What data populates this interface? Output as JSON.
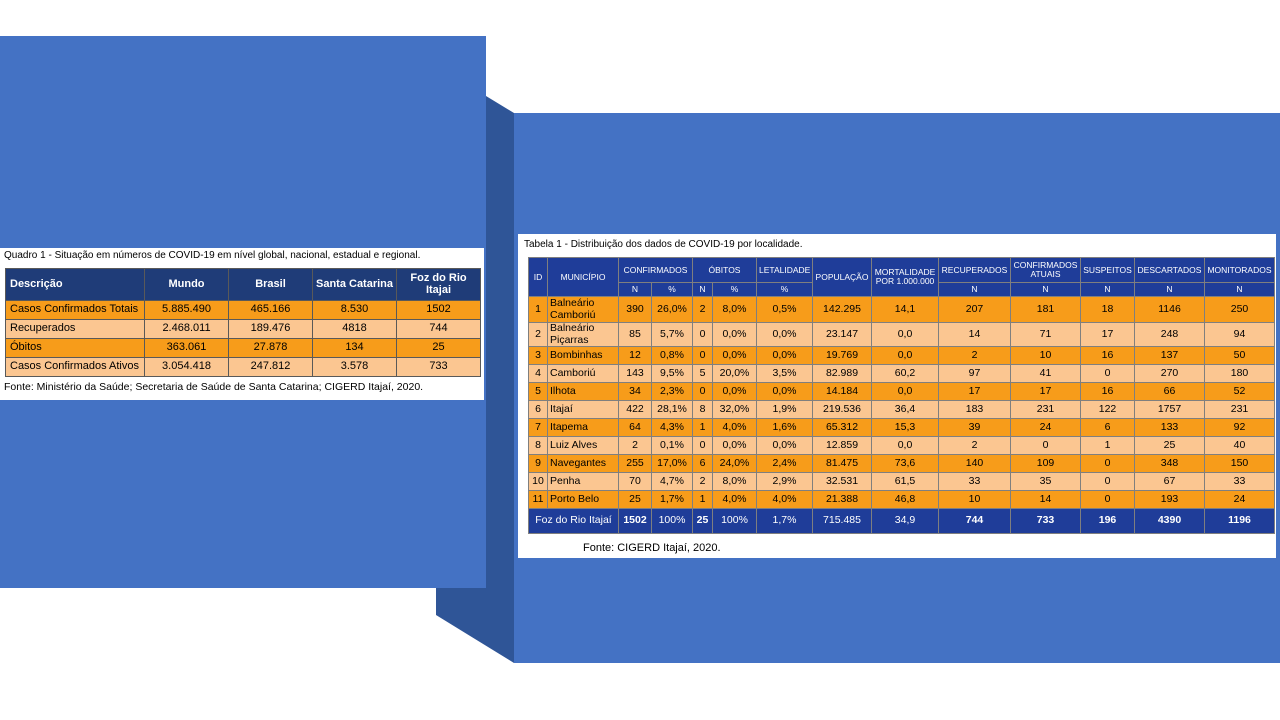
{
  "table1": {
    "caption": "Quadro 1 - Situação em números de COVID-19 em nível global, nacional, estadual e regional.",
    "headers": [
      "Descrição",
      "Mundo",
      "Brasil",
      "Santa Catarina",
      "Foz do Rio Itajai"
    ],
    "rows": [
      [
        "Casos Confirmados Totais",
        "5.885.490",
        "465.166",
        "8.530",
        "1502"
      ],
      [
        "Recuperados",
        "2.468.011",
        "189.476",
        "4818",
        "744"
      ],
      [
        "Óbitos",
        "363.061",
        "27.878",
        "134",
        "25"
      ],
      [
        "Casos Confirmados Ativos",
        "3.054.418",
        "247.812",
        "3.578",
        "733"
      ]
    ],
    "source": "Fonte: Ministério da Saúde; Secretaria de Saúde de Santa Catarina; CIGERD Itajaí, 2020."
  },
  "table2": {
    "caption": "Tabela 1 - Distribuição dos dados de COVID-19 por localidade.",
    "headers": [
      "ID",
      "MUNICÍPIO",
      "CONFIRMADOS",
      "ÓBITOS",
      "LETALIDADE",
      "POPULAÇÃO",
      "MORTALIDADE POR 1.000.000",
      "RECUPERADOS",
      "CONFIRMADOS ATUAIS",
      "SUSPEITOS",
      "DESCARTADOS",
      "MONITORADOS"
    ],
    "subheaders": [
      "N",
      "%",
      "N",
      "%",
      "%",
      "N",
      "N",
      "N",
      "N",
      "N"
    ],
    "rows": [
      [
        "1",
        "Balneário Camboriú",
        "390",
        "26,0%",
        "2",
        "8,0%",
        "0,5%",
        "142.295",
        "14,1",
        "207",
        "181",
        "18",
        "1146",
        "250"
      ],
      [
        "2",
        "Balneário Piçarras",
        "85",
        "5,7%",
        "0",
        "0,0%",
        "0,0%",
        "23.147",
        "0,0",
        "14",
        "71",
        "17",
        "248",
        "94"
      ],
      [
        "3",
        "Bombinhas",
        "12",
        "0,8%",
        "0",
        "0,0%",
        "0,0%",
        "19.769",
        "0,0",
        "2",
        "10",
        "16",
        "137",
        "50"
      ],
      [
        "4",
        "Camboriú",
        "143",
        "9,5%",
        "5",
        "20,0%",
        "3,5%",
        "82.989",
        "60,2",
        "97",
        "41",
        "0",
        "270",
        "180"
      ],
      [
        "5",
        "Ilhota",
        "34",
        "2,3%",
        "0",
        "0,0%",
        "0,0%",
        "14.184",
        "0,0",
        "17",
        "17",
        "16",
        "66",
        "52"
      ],
      [
        "6",
        "Itajaí",
        "422",
        "28,1%",
        "8",
        "32,0%",
        "1,9%",
        "219.536",
        "36,4",
        "183",
        "231",
        "122",
        "1757",
        "231"
      ],
      [
        "7",
        "Itapema",
        "64",
        "4,3%",
        "1",
        "4,0%",
        "1,6%",
        "65.312",
        "15,3",
        "39",
        "24",
        "6",
        "133",
        "92"
      ],
      [
        "8",
        "Luiz Alves",
        "2",
        "0,1%",
        "0",
        "0,0%",
        "0,0%",
        "12.859",
        "0,0",
        "2",
        "0",
        "1",
        "25",
        "40"
      ],
      [
        "9",
        "Navegantes",
        "255",
        "17,0%",
        "6",
        "24,0%",
        "2,4%",
        "81.475",
        "73,6",
        "140",
        "109",
        "0",
        "348",
        "150"
      ],
      [
        "10",
        "Penha",
        "70",
        "4,7%",
        "2",
        "8,0%",
        "2,9%",
        "32.531",
        "61,5",
        "33",
        "35",
        "0",
        "67",
        "33"
      ],
      [
        "11",
        "Porto Belo",
        "25",
        "1,7%",
        "1",
        "4,0%",
        "4,0%",
        "21.388",
        "46,8",
        "10",
        "14",
        "0",
        "193",
        "24"
      ]
    ],
    "total": [
      "Foz do Rio Itajaí",
      "1502",
      "100%",
      "25",
      "100%",
      "1,7%",
      "715.485",
      "34,9",
      "744",
      "733",
      "196",
      "4390",
      "1196"
    ],
    "source": "Fonte: CIGERD Itajaí, 2020."
  }
}
